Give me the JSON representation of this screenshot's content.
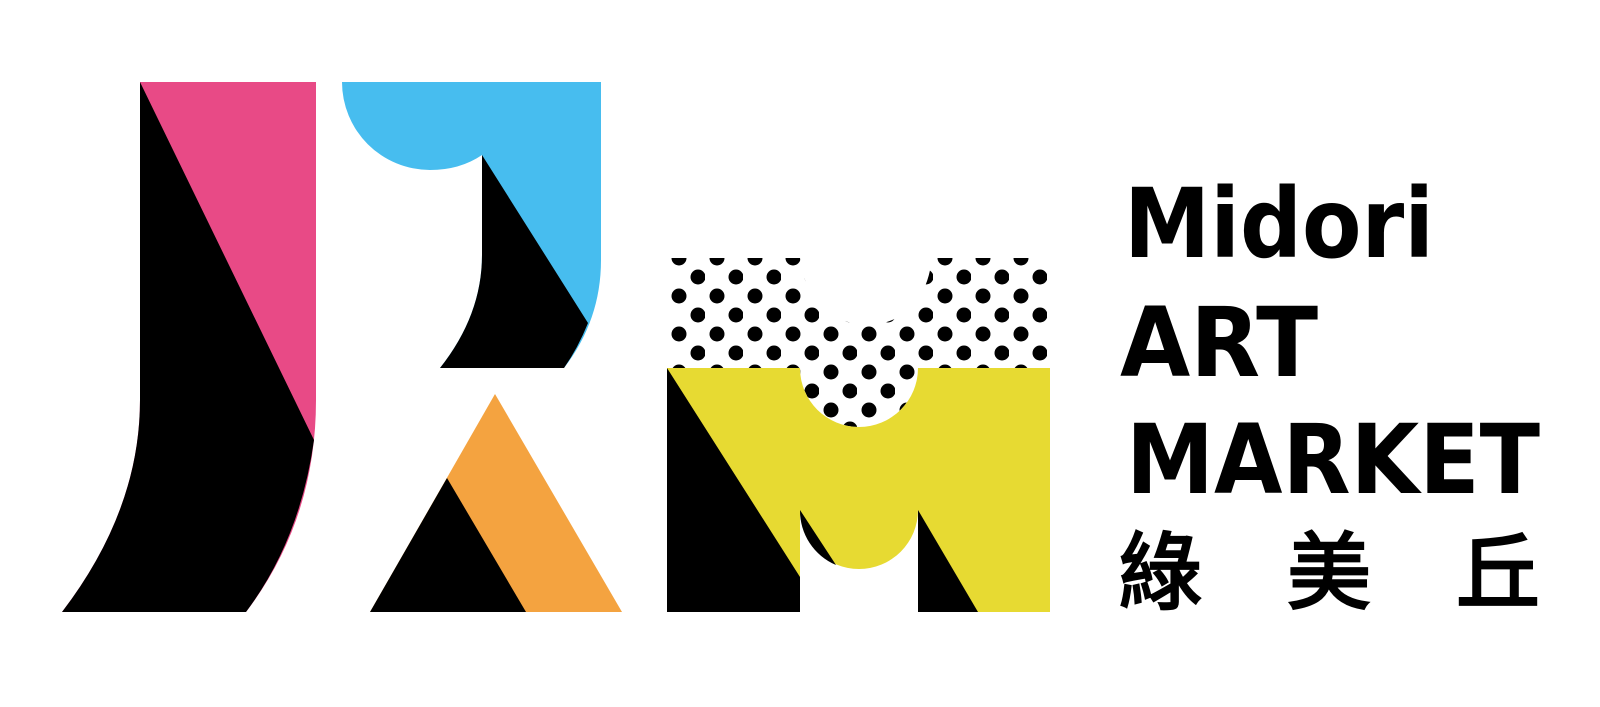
{
  "logo": {
    "name_line1": "Midori",
    "name_line2": "ART",
    "name_line3": "MARKET",
    "name_chinese": "綠 美 丘",
    "monogram": "JRM",
    "colors": {
      "pink": "#e84a86",
      "blue": "#47bdef",
      "orange": "#f4a340",
      "yellow": "#e7da32",
      "black": "#000000",
      "background": "#ffffff"
    }
  }
}
